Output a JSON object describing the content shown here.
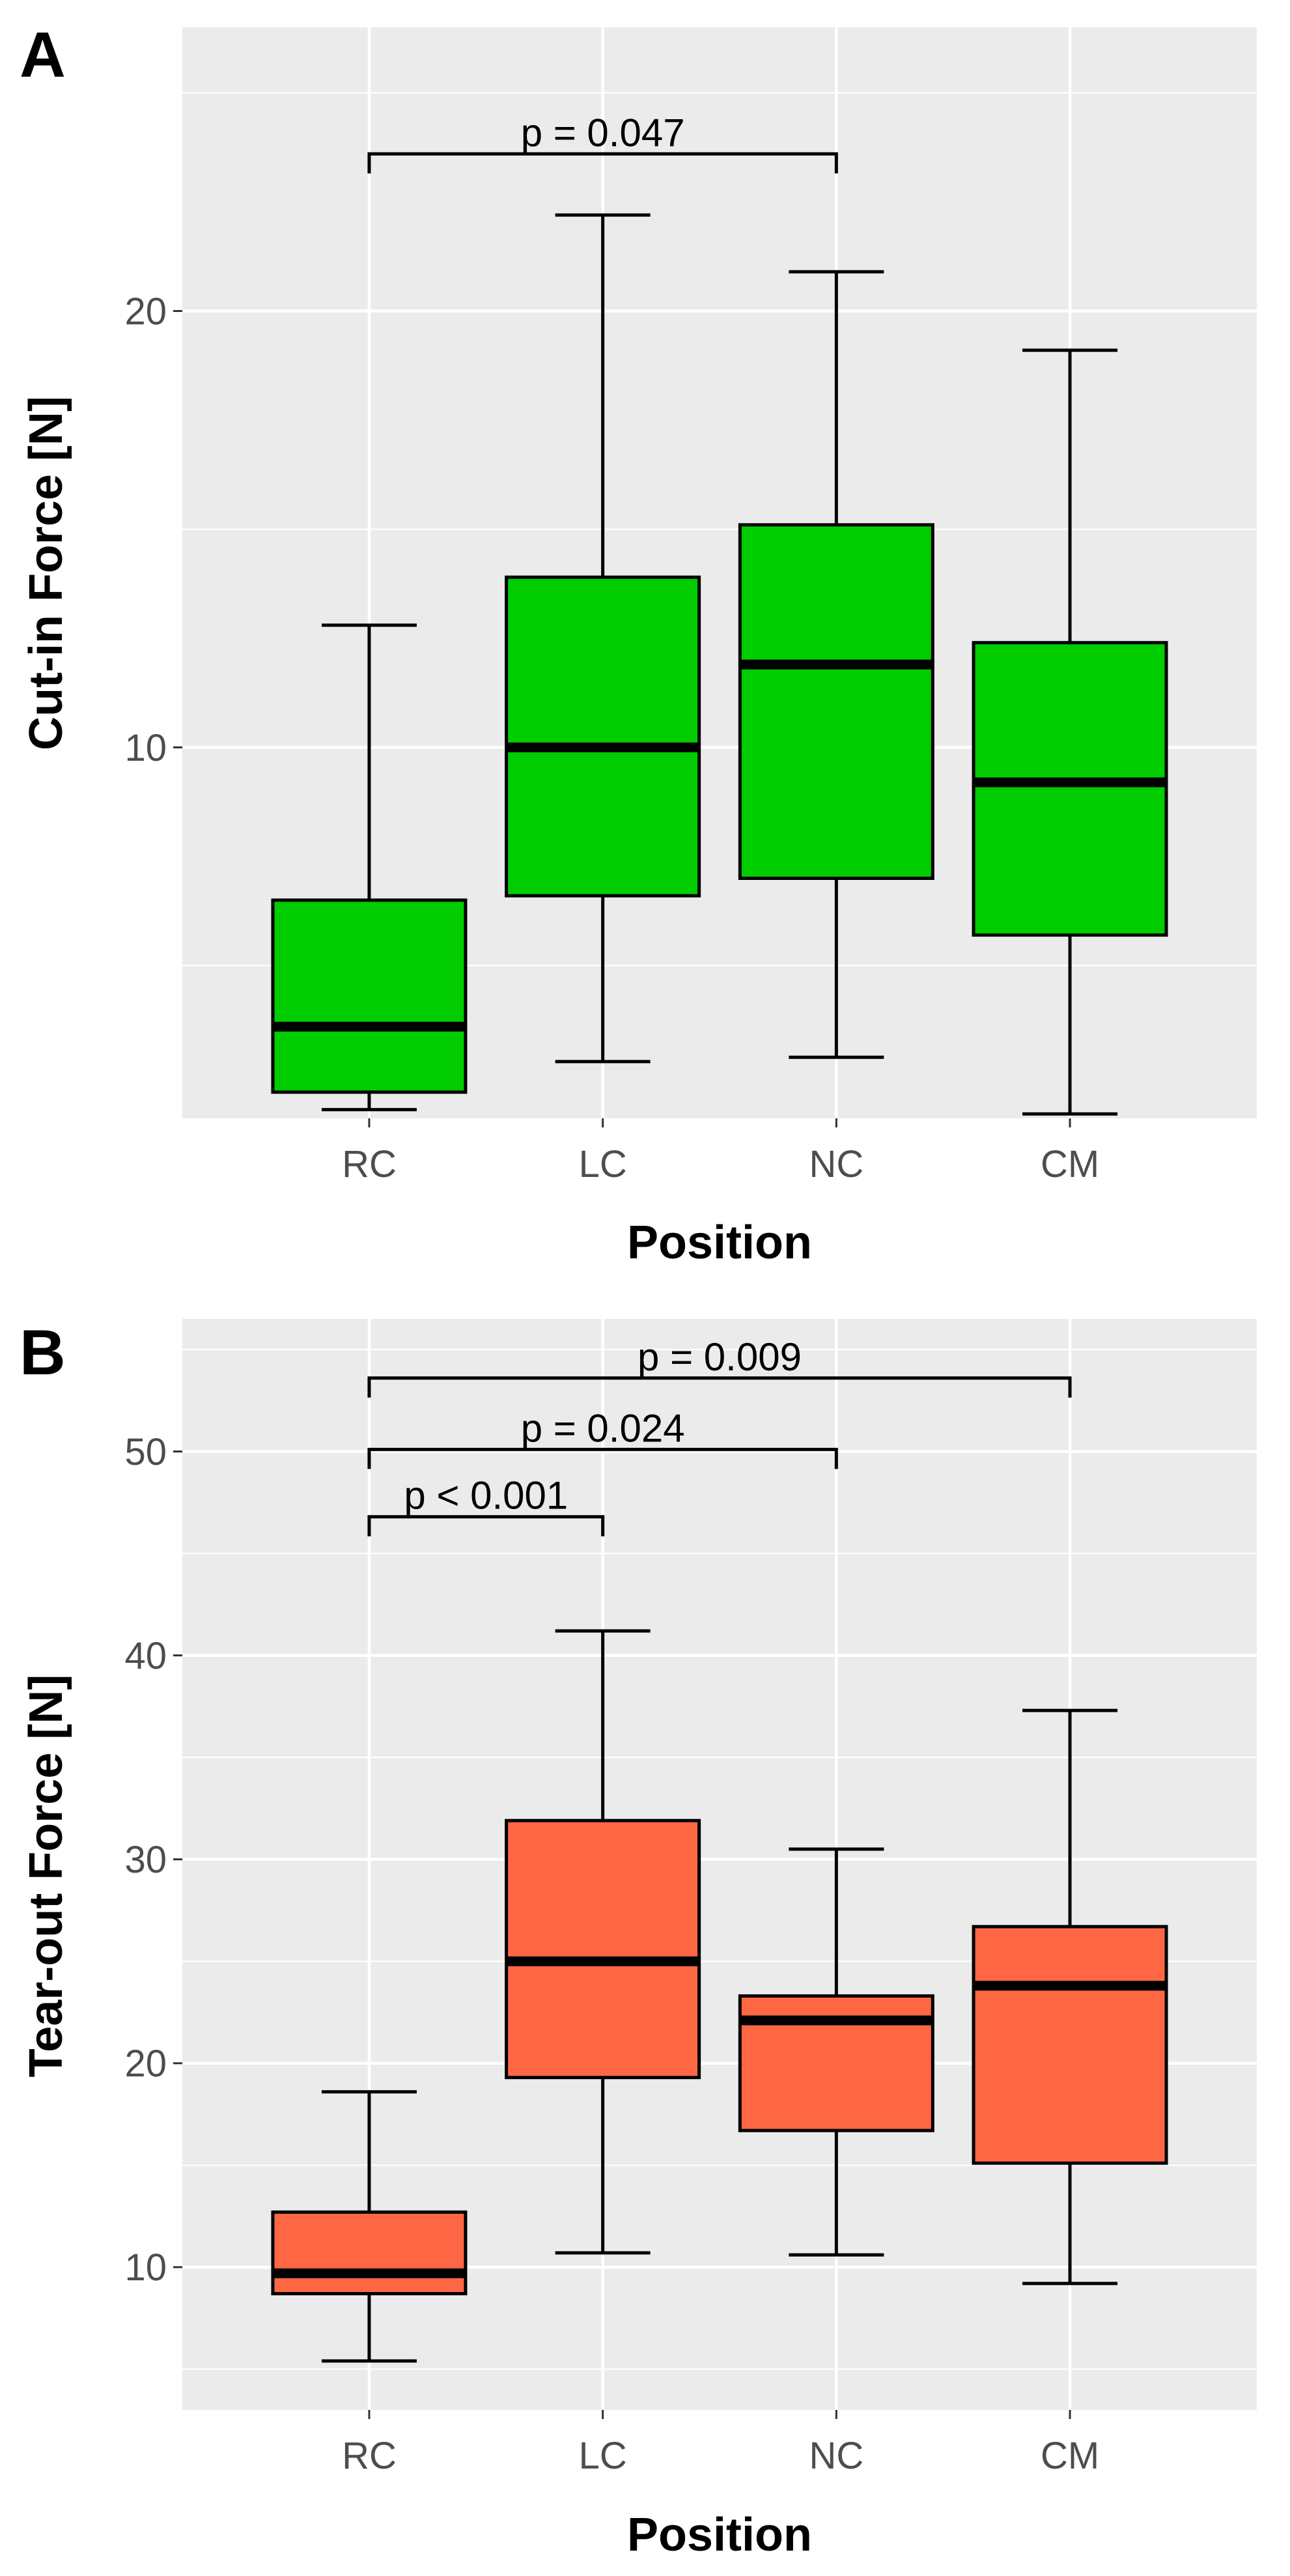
{
  "chart_data": [
    {
      "type": "box",
      "panel": "A",
      "title": "",
      "xlabel": "Position",
      "ylabel": "Cut-in Force [N]",
      "categories": [
        "RC",
        "LC",
        "NC",
        "CM"
      ],
      "ylim": [
        1.5,
        26.5
      ],
      "yticks": [
        10,
        20
      ],
      "fill_color": "#00CC00",
      "boxes": [
        {
          "category": "RC",
          "min": 1.7,
          "q1": 2.1,
          "median": 3.6,
          "q3": 6.5,
          "max": 12.8
        },
        {
          "category": "LC",
          "min": 2.8,
          "q1": 6.6,
          "median": 10.0,
          "q3": 13.9,
          "max": 22.2
        },
        {
          "category": "NC",
          "min": 2.9,
          "q1": 7.0,
          "median": 11.9,
          "q3": 15.1,
          "max": 20.9
        },
        {
          "category": "CM",
          "min": 1.6,
          "q1": 5.7,
          "median": 9.2,
          "q3": 12.4,
          "max": 19.1
        }
      ],
      "comparisons": [
        {
          "from": "RC",
          "to": "NC",
          "y": 23.6,
          "label": "p = 0.047"
        }
      ]
    },
    {
      "type": "box",
      "panel": "B",
      "title": "",
      "xlabel": "Position",
      "ylabel": "Tear-out Force [N]",
      "categories": [
        "RC",
        "LC",
        "NC",
        "CM"
      ],
      "ylim": [
        3.0,
        56.5
      ],
      "yticks": [
        10,
        20,
        30,
        40,
        50
      ],
      "fill_color": "#FF6644",
      "boxes": [
        {
          "category": "RC",
          "min": 5.4,
          "q1": 8.7,
          "median": 9.7,
          "q3": 12.7,
          "max": 18.6
        },
        {
          "category": "LC",
          "min": 10.7,
          "q1": 19.3,
          "median": 25.0,
          "q3": 31.9,
          "max": 41.2
        },
        {
          "category": "NC",
          "min": 10.6,
          "q1": 16.7,
          "median": 22.1,
          "q3": 23.3,
          "max": 30.5
        },
        {
          "category": "CM",
          "min": 9.2,
          "q1": 15.1,
          "median": 23.8,
          "q3": 26.7,
          "max": 37.3
        }
      ],
      "comparisons": [
        {
          "from": "RC",
          "to": "LC",
          "y": 46.8,
          "label": "p < 0.001"
        },
        {
          "from": "RC",
          "to": "NC",
          "y": 50.1,
          "label": "p = 0.024"
        },
        {
          "from": "RC",
          "to": "CM",
          "y": 53.6,
          "label": "p = 0.009"
        }
      ]
    }
  ]
}
